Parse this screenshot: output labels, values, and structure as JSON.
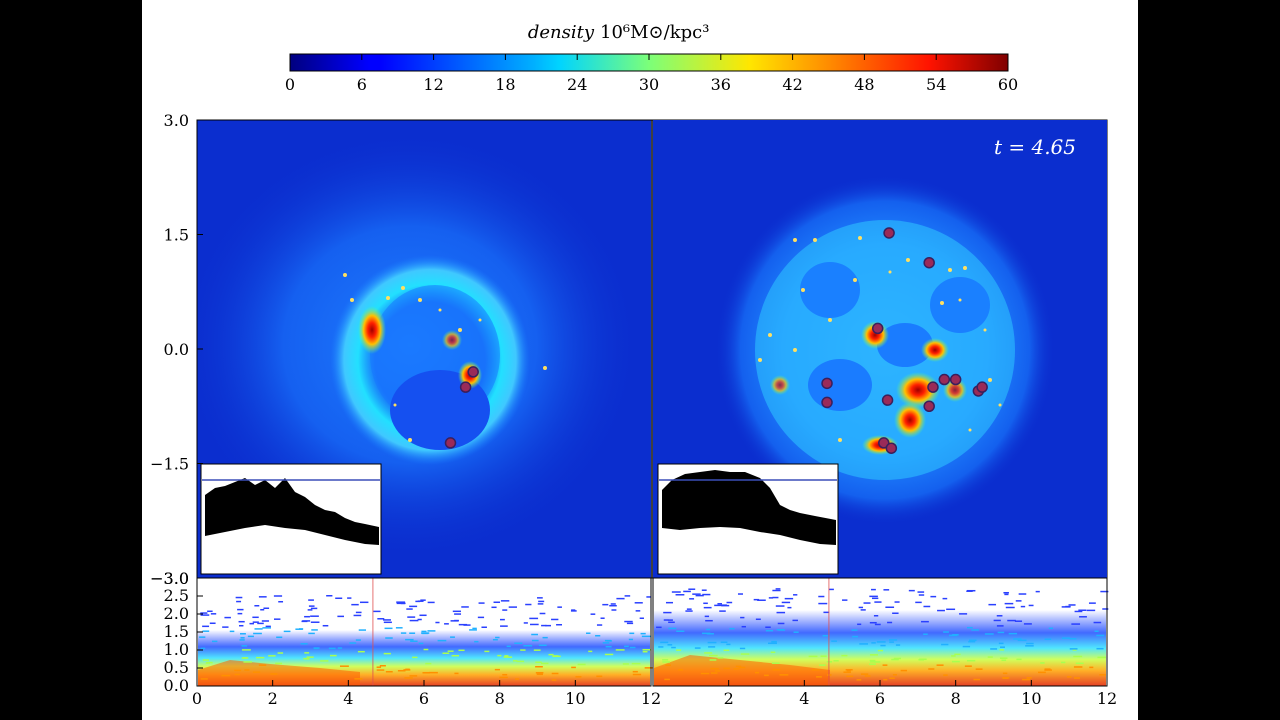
{
  "colors": {
    "background": "#000000",
    "figure": "#ffffff",
    "map_background": "#0b2ecf",
    "halo": "#1c6cf5",
    "clump_ring": "#3a1f5c",
    "clump_fill": "#9a2a58",
    "inset_line": "#3b4fb8"
  },
  "colorbar": {
    "title": "density",
    "units": "10⁶M⊙/kpc³",
    "ticks": [
      "0",
      "6",
      "12",
      "18",
      "24",
      "30",
      "36",
      "42",
      "48",
      "54",
      "60"
    ],
    "range": [
      0,
      60
    ]
  },
  "time_label": "t = 4.65",
  "chart_data": [
    {
      "type": "heatmap",
      "title": "",
      "panel": "left",
      "xlim": [
        -3,
        3
      ],
      "ylim": [
        -3,
        3
      ],
      "y_ticks": [
        "3.0",
        "1.5",
        "0.0",
        "−1.5",
        "−3.0"
      ],
      "y_tick_values": [
        3.0,
        1.5,
        0.0,
        -1.5,
        -3.0
      ],
      "clumps": [
        {
          "x": 0.65,
          "y": -0.3
        },
        {
          "x": 0.55,
          "y": -0.5
        },
        {
          "x": 0.35,
          "y": -1.23
        }
      ]
    },
    {
      "type": "heatmap",
      "title": "",
      "panel": "right",
      "xlim": [
        -3,
        3
      ],
      "ylim": [
        -3,
        3
      ],
      "clumps": [
        {
          "x": 0.12,
          "y": 1.52
        },
        {
          "x": 0.65,
          "y": 1.13
        },
        {
          "x": -0.03,
          "y": 0.27
        },
        {
          "x": -0.7,
          "y": -0.45
        },
        {
          "x": -0.7,
          "y": -0.7
        },
        {
          "x": 0.1,
          "y": -0.67
        },
        {
          "x": 0.7,
          "y": -0.5
        },
        {
          "x": 0.85,
          "y": -0.4
        },
        {
          "x": 1.0,
          "y": -0.4
        },
        {
          "x": 0.65,
          "y": -0.75
        },
        {
          "x": 1.3,
          "y": -0.55
        },
        {
          "x": 1.35,
          "y": -0.5
        },
        {
          "x": 0.05,
          "y": -1.23
        },
        {
          "x": 0.15,
          "y": -1.3
        }
      ]
    },
    {
      "type": "scatter",
      "title": "",
      "panel": "bottom-left",
      "xlim": [
        0,
        12
      ],
      "ylim": [
        0,
        3
      ],
      "x_ticks": [
        "0",
        "2",
        "4",
        "6",
        "8",
        "10",
        "12"
      ],
      "x_tick_values": [
        0,
        2,
        4,
        6,
        8,
        10,
        12
      ],
      "y_ticks": [
        "0.0",
        "0.5",
        "1.0",
        "1.5",
        "2.0",
        "2.5"
      ],
      "y_tick_values": [
        0.0,
        0.5,
        1.0,
        1.5,
        2.0,
        2.5
      ],
      "marker_x": 4.65
    },
    {
      "type": "scatter",
      "title": "",
      "panel": "bottom-right",
      "xlim": [
        0,
        12
      ],
      "ylim": [
        0,
        3
      ],
      "x_ticks": [
        "2",
        "4",
        "6",
        "8",
        "10",
        "12"
      ],
      "x_tick_values": [
        2,
        4,
        6,
        8,
        10,
        12
      ],
      "marker_x": 4.65
    }
  ]
}
